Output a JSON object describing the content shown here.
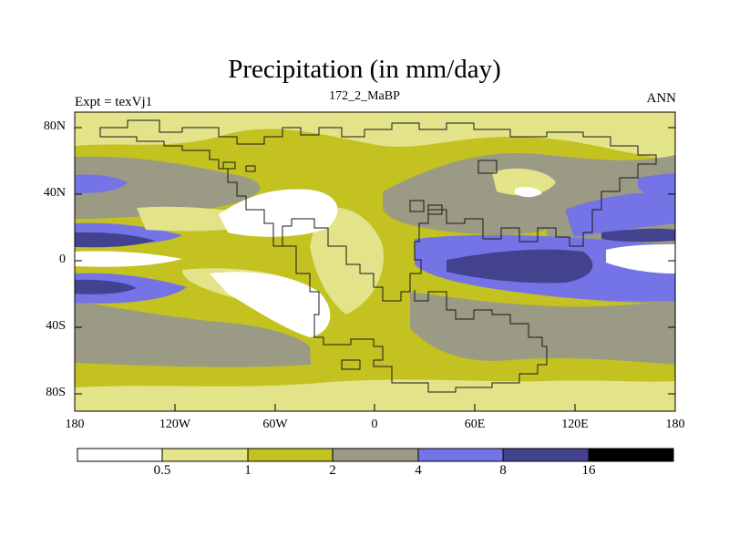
{
  "title": "Precipitation (in mm/day)",
  "left_label": "Expt = texVj1",
  "center_label": "172_2_MaBP",
  "right_label": "ANN",
  "lat_ticks": [
    "80N",
    "40N",
    "0",
    "40S",
    "80S"
  ],
  "lon_ticks": [
    "180",
    "120W",
    "60W",
    "0",
    "60E",
    "120E",
    "180"
  ],
  "colorbar": {
    "labels": [
      "0.5",
      "1",
      "2",
      "4",
      "8",
      "16"
    ],
    "colors": [
      "#ffffff",
      "#e3e38a",
      "#c3c220",
      "#9a9a85",
      "#7474e6",
      "#42428e",
      "#000000"
    ]
  },
  "units": "mm/day"
}
